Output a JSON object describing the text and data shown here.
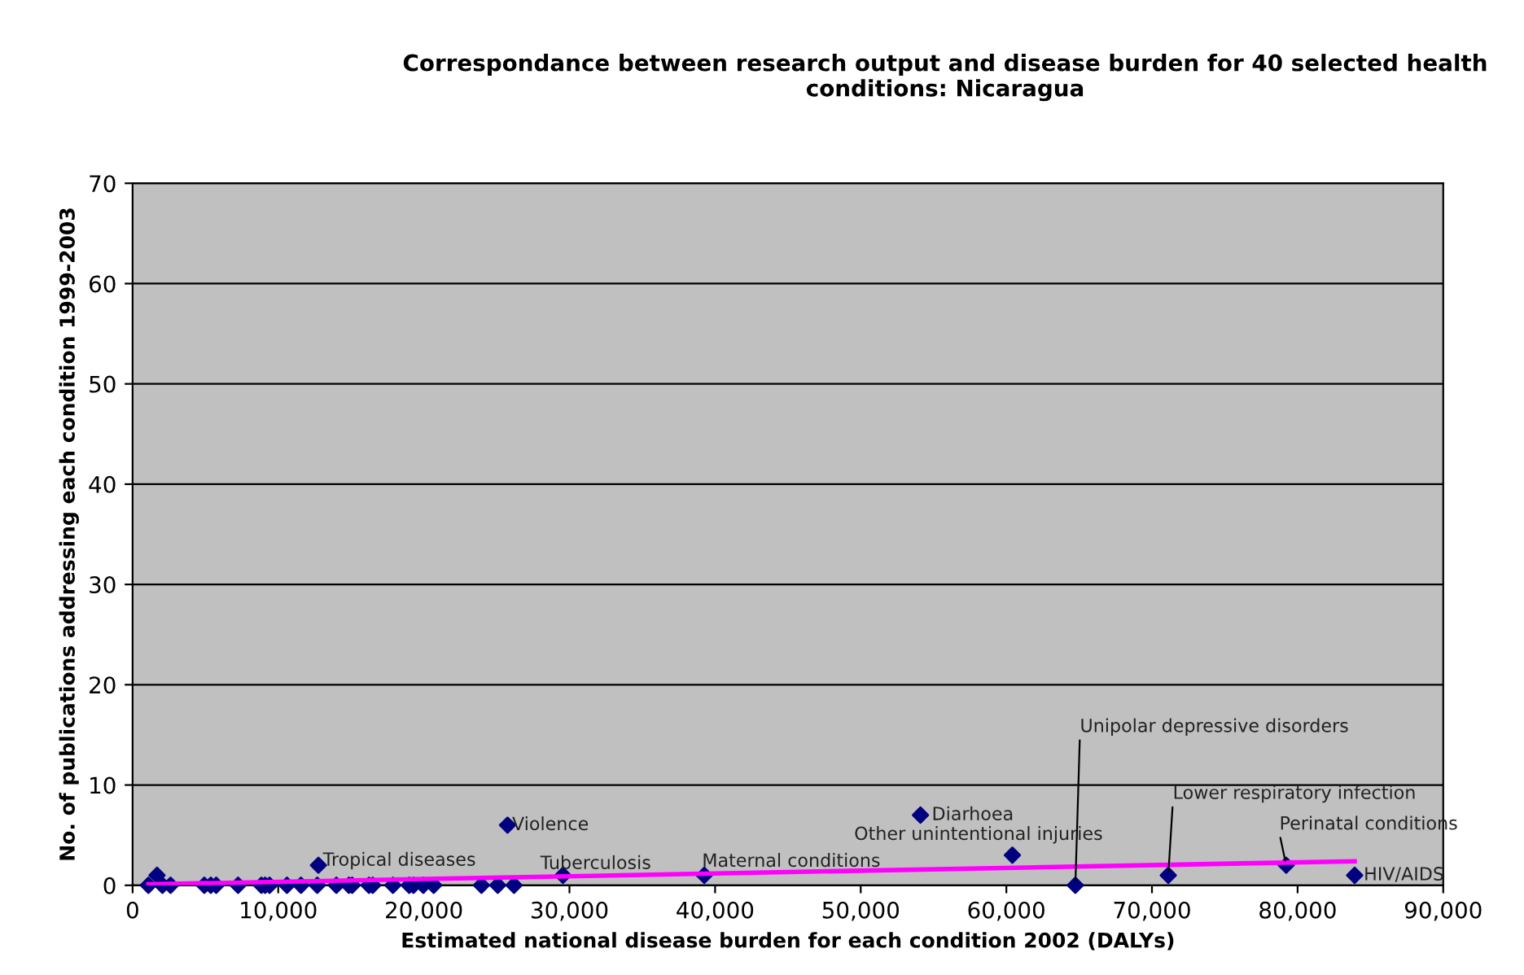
{
  "chart_data": {
    "type": "scatter",
    "title": "Correspondance between research output and disease burden for 40 selected health conditions: Nicaragua",
    "xlabel": "Estimated national disease burden for each condition 2002 (DALYs)",
    "ylabel": "No. of publications addressing each condition 1999-2003",
    "series": [
      {
        "color": "#000080",
        "marker": "diamond",
        "x": [
          1086,
          1679,
          2049,
          2608,
          4926,
          5373,
          5743,
          7243,
          8844,
          9101,
          9404,
          10601,
          11564,
          12683,
          12760,
          13993,
          14855,
          15079,
          16233,
          16490,
          17877,
          18996,
          19289,
          19960,
          20676,
          23956,
          25075,
          26194,
          25747,
          29553,
          39258,
          54103,
          60414,
          64739,
          71120,
          79217,
          83917
        ],
        "values": [
          0,
          1,
          0,
          0,
          0,
          0,
          0,
          0,
          0,
          0,
          0,
          0,
          0,
          0,
          2,
          0,
          0,
          0,
          0,
          0,
          0,
          0,
          0,
          0,
          0,
          0,
          0,
          0,
          6,
          1,
          1,
          7,
          3,
          0,
          1,
          2,
          1
        ]
      },
      {
        "type": "line",
        "color": "#ff00ff",
        "marker": "none",
        "x": [
          1086,
          83917
        ],
        "values": [
          0.1,
          2.4
        ]
      }
    ],
    "annotations": [
      {
        "text": "Tropical diseases",
        "x": 12760,
        "y": 2
      },
      {
        "text": "Violence",
        "x": 25747,
        "y": 6
      },
      {
        "text": "Tuberculosis",
        "x": 29553,
        "y": 1
      },
      {
        "text": "Maternal conditions",
        "x": 39258,
        "y": 1
      },
      {
        "text": "Diarhoea",
        "x": 54103,
        "y": 7
      },
      {
        "text": "Other unintentional injuries",
        "x": 60414,
        "y": 3
      },
      {
        "text": "Unipolar depressive disorders",
        "x": 64739,
        "y": 0
      },
      {
        "text": "Lower respiratory infection",
        "x": 71120,
        "y": 1
      },
      {
        "text": "Perinatal conditions",
        "x": 79217,
        "y": 2
      },
      {
        "text": "HIV/AIDS",
        "x": 83917,
        "y": 1
      }
    ],
    "xlim": [
      0,
      90000
    ],
    "xticks": [
      {
        "value": 0,
        "label": "0"
      },
      {
        "value": 10000,
        "label": "10,000"
      },
      {
        "value": 20000,
        "label": "20,000"
      },
      {
        "value": 30000,
        "label": "30,000"
      },
      {
        "value": 40000,
        "label": "40,000"
      },
      {
        "value": 50000,
        "label": "50,000"
      },
      {
        "value": 60000,
        "label": "60,000"
      },
      {
        "value": 70000,
        "label": "70,000"
      },
      {
        "value": 80000,
        "label": "80,000"
      },
      {
        "value": 90000,
        "label": "90,000"
      }
    ],
    "ylim": [
      0,
      70
    ],
    "yticks": [
      0,
      10,
      20,
      30,
      40,
      50,
      60,
      70
    ],
    "grid": "y",
    "legend": false
  }
}
